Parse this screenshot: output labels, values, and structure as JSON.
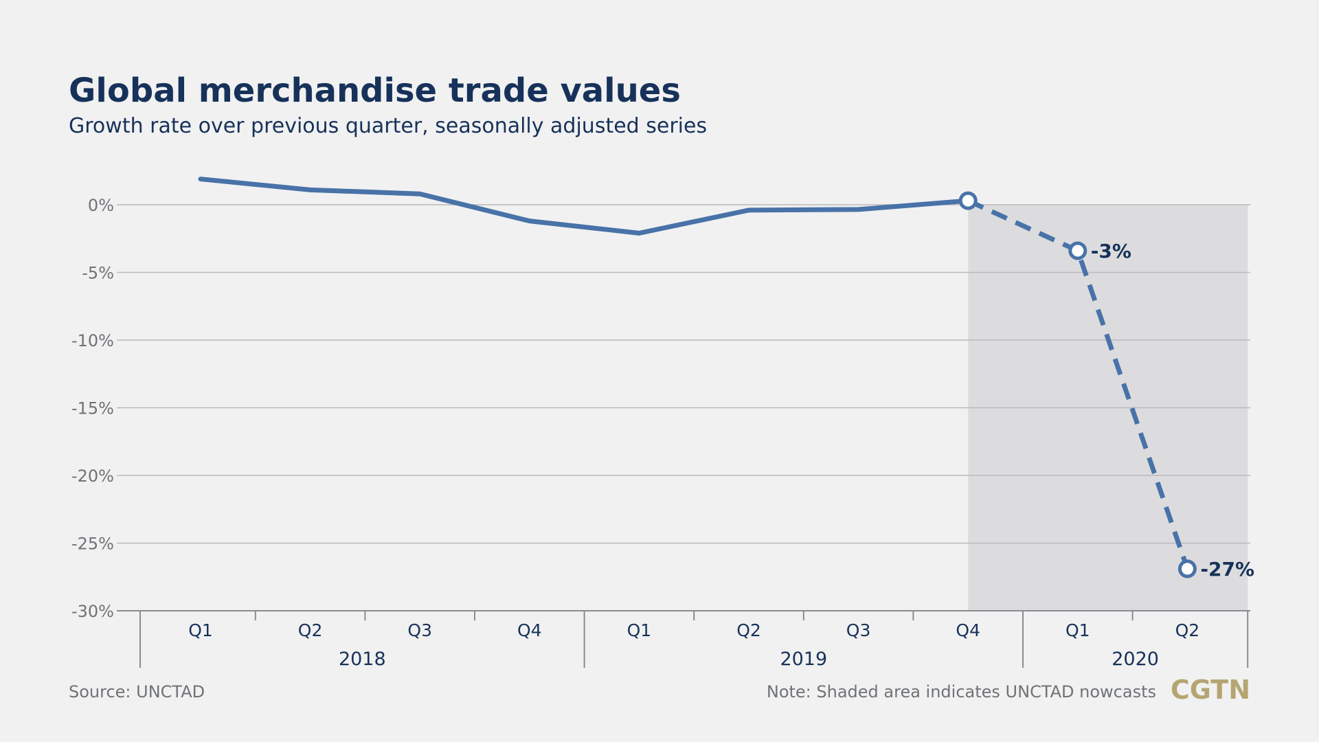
{
  "header": {
    "title": "Global merchandise trade values",
    "subtitle": "Growth rate over previous quarter, seasonally adjusted series"
  },
  "footer": {
    "source": "Source: UNCTAD",
    "note": "Note: Shaded area indicates UNCTAD nowcasts",
    "logo_text": "CGTN",
    "logo_color": "#b4a572"
  },
  "colors": {
    "line": "#4872a8",
    "shade": "#dcdcde",
    "background": "#f1f1f1",
    "title": "#17325a",
    "axis_text": "#6f7276"
  },
  "chart_data": {
    "type": "line",
    "title": "Global merchandise trade values",
    "subtitle": "Growth rate over previous quarter, seasonally adjusted series",
    "xlabel": "",
    "ylabel": "",
    "ylim": [
      -30,
      0
    ],
    "yticks": [
      0,
      -5,
      -10,
      -15,
      -20,
      -25,
      -30
    ],
    "ytick_labels": [
      "0%",
      "-5%",
      "-10%",
      "-15%",
      "-20%",
      "-25%",
      "-30%"
    ],
    "categories": [
      "Q1",
      "Q2",
      "Q3",
      "Q4",
      "Q1",
      "Q2",
      "Q3",
      "Q4",
      "Q1",
      "Q2"
    ],
    "year_groups": [
      {
        "label": "2018",
        "start": 0,
        "end": 3
      },
      {
        "label": "2019",
        "start": 4,
        "end": 7
      },
      {
        "label": "2020",
        "start": 8,
        "end": 9
      }
    ],
    "series": [
      {
        "values": [
          1.9,
          1.1,
          0.8,
          -1.2,
          -2.1,
          -0.4,
          -0.35,
          0.3,
          -3.4,
          -26.9
        ],
        "nowcast_start_index": 7
      }
    ],
    "shaded_region": {
      "from_index": 7,
      "to_index": 9,
      "meaning": "UNCTAD nowcasts"
    },
    "annotations": [
      {
        "index": 8,
        "label": "-3%"
      },
      {
        "index": 9,
        "label": "-27%"
      }
    ],
    "grid": true,
    "legend": "none"
  }
}
